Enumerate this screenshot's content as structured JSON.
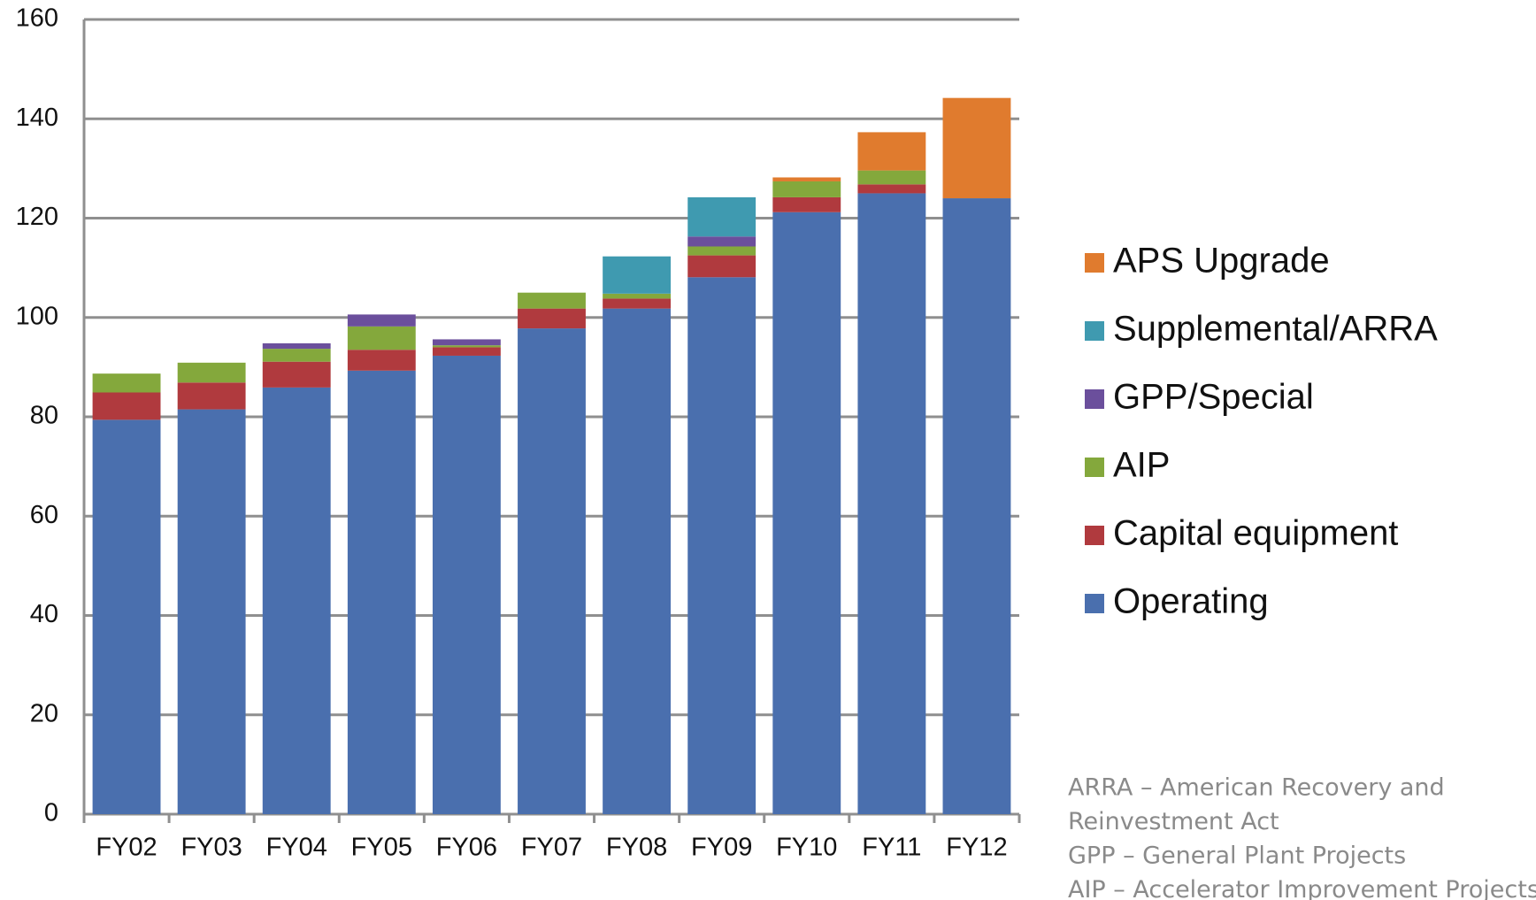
{
  "chart_data": {
    "type": "stacked_bar",
    "categories": [
      "FY02",
      "FY03",
      "FY04",
      "FY05",
      "FY06",
      "FY07",
      "FY08",
      "FY09",
      "FY10",
      "FY11",
      "FY12"
    ],
    "series": [
      {
        "name": "Operating",
        "color": "#4a6fae",
        "values": [
          79.4,
          81.5,
          85.9,
          89.3,
          92.3,
          97.8,
          101.8,
          108.1,
          121.2,
          125.0,
          124.0
        ]
      },
      {
        "name": "Capital equipment",
        "color": "#b03a3e",
        "values": [
          5.5,
          5.4,
          5.2,
          4.2,
          1.7,
          4.0,
          2.0,
          4.4,
          3.0,
          1.8,
          0
        ]
      },
      {
        "name": "AIP",
        "color": "#84a83c",
        "values": [
          3.8,
          4.0,
          2.6,
          4.7,
          0.4,
          3.2,
          1.0,
          1.8,
          3.2,
          2.8,
          0
        ]
      },
      {
        "name": "GPP/Special",
        "color": "#6b4f9c",
        "values": [
          0,
          0,
          1.1,
          2.4,
          1.2,
          0,
          0,
          2.0,
          0,
          0,
          0
        ]
      },
      {
        "name": "Supplemental/ARRA",
        "color": "#3f9ab0",
        "values": [
          0,
          0,
          0,
          0,
          0,
          0,
          7.5,
          7.9,
          0,
          0,
          0
        ]
      },
      {
        "name": "APS Upgrade",
        "color": "#e07b2e",
        "values": [
          0,
          0,
          0,
          0,
          0,
          0,
          0,
          0,
          0.8,
          7.7,
          20.2
        ]
      }
    ],
    "ylim": [
      0,
      160
    ],
    "yticks": [
      0,
      20,
      40,
      60,
      80,
      100,
      120,
      140,
      160
    ],
    "grid": true,
    "legend": "right",
    "notes": [
      "ARRA – American Recovery and",
      "Reinvestment Act",
      "GPP – General Plant Projects",
      "AIP – Accelerator Improvement Projects"
    ]
  }
}
